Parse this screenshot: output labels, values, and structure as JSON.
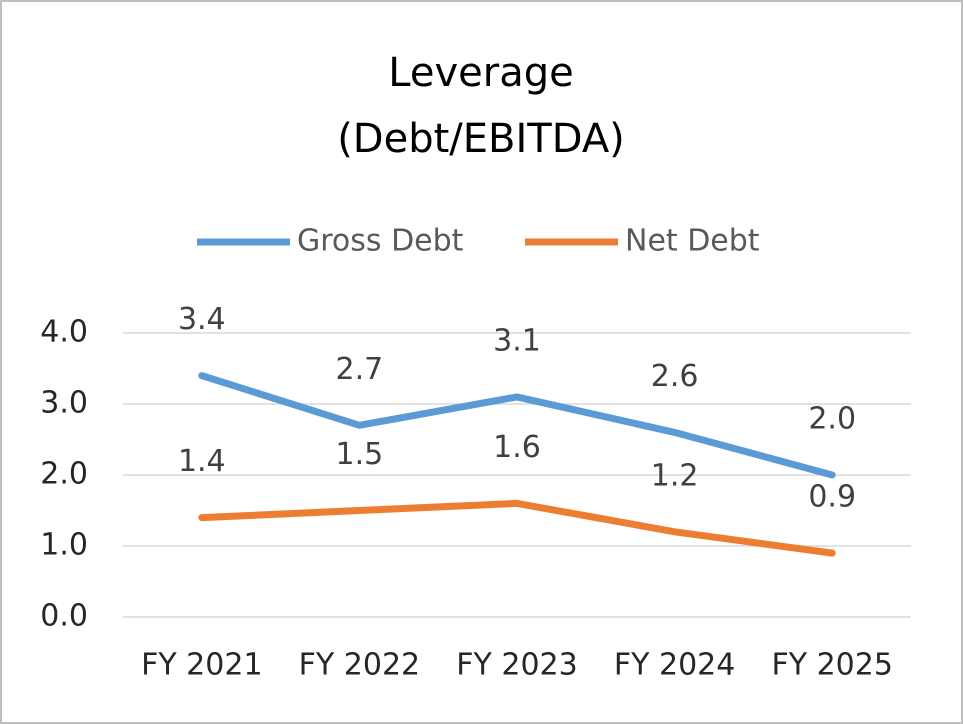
{
  "chart_data": {
    "type": "line",
    "title": "Leverage",
    "subtitle": "(Debt/EBITDA)",
    "categories": [
      "FY 2021",
      "FY 2022",
      "FY 2023",
      "FY 2024",
      "FY 2025"
    ],
    "series": [
      {
        "name": "Gross Debt",
        "color": "#5b9bd5",
        "values": [
          3.4,
          2.7,
          3.1,
          2.6,
          2.0
        ],
        "value_labels": [
          "3.4",
          "2.7",
          "3.1",
          "2.6",
          "2.0"
        ]
      },
      {
        "name": "Net Debt",
        "color": "#ed7d31",
        "values": [
          1.4,
          1.5,
          1.6,
          1.2,
          0.9
        ]
      }
    ],
    "ylim": [
      0,
      4
    ],
    "yticks": [
      {
        "value": 0,
        "label": "0.0"
      },
      {
        "value": 1,
        "label": "1.0"
      },
      {
        "value": 2,
        "label": "2.0"
      },
      {
        "value": 3,
        "label": "3.0"
      },
      {
        "value": 4,
        "label": "4.0"
      }
    ],
    "grid": true,
    "legend": "top"
  }
}
